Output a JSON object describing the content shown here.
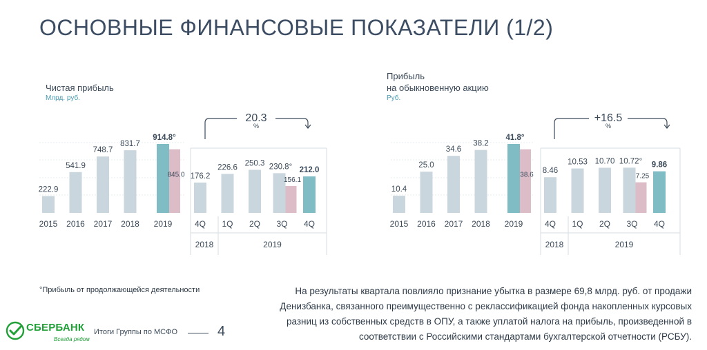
{
  "page": {
    "title": "ОСНОВНЫЕ  ФИНАНСОВЫЕ  ПОКАЗАТЕЛИ (1/2)",
    "footnote": "°Прибыль от продолжающейся деятельности",
    "comment": "На результаты квартала повлияло признание убытка в размере 69,8 млрд. руб. от продажи Денизбанка, связанного преимущественно с реклассификацией фонда накопленных курсовых разниц из собственных средств в ОПУ, а также уплатой налога на прибыль, произведенной в соответствии с Российскими стандартами бухгалтерской отчетности (РСБУ).",
    "footer_text": "Итоги Группы по МСФО",
    "page_number": "4",
    "logo_name": "СБЕРБАНК",
    "logo_slogan": "Всегда рядом"
  },
  "colors": {
    "bar_light": "#c9d6dd",
    "bar_teal": "#7fbcc4",
    "bar_pink": "#dcbcc7",
    "text": "#3b4a5a",
    "unit": "#4a9ab0",
    "brand": "#21a038"
  },
  "chart_data": [
    {
      "type": "bar",
      "title": "Чистая прибыль",
      "unit": "Млрд. руб.",
      "annual": {
        "categories": [
          "2015",
          "2016",
          "2017",
          "2018",
          "2019"
        ],
        "values": [
          222.9,
          541.9,
          748.7,
          831.7,
          914.8
        ],
        "labels": [
          "222.9",
          "541.9",
          "748.7",
          "831.7",
          "914.8°"
        ],
        "comparison": {
          "category": "2019",
          "value": 845.0,
          "label": "845.0"
        }
      },
      "quarterly": {
        "categories": [
          "4Q",
          "1Q",
          "2Q",
          "3Q",
          "4Q"
        ],
        "years": [
          "2018",
          "2019"
        ],
        "values": [
          176.2,
          226.6,
          250.3,
          230.8,
          212.0
        ],
        "labels": [
          "176.2",
          "226.6",
          "250.3",
          "230.8°",
          "212.0"
        ],
        "comparison": {
          "category": "3Q",
          "value": 156.1,
          "label": "156.1"
        }
      },
      "change": {
        "value": "20.3",
        "unit": "%"
      }
    },
    {
      "type": "bar",
      "title": "Прибыль\nна обыкновенную  акцию",
      "unit": "Руб.",
      "annual": {
        "categories": [
          "2015",
          "2016",
          "2017",
          "2018",
          "2019"
        ],
        "values": [
          10.4,
          25.0,
          34.6,
          38.2,
          41.8
        ],
        "labels": [
          "10.4",
          "25.0",
          "34.6",
          "38.2",
          "41.8°"
        ],
        "comparison": {
          "category": "2019",
          "value": 38.6,
          "label": "38.6"
        }
      },
      "quarterly": {
        "categories": [
          "4Q",
          "1Q",
          "2Q",
          "3Q",
          "4Q"
        ],
        "years": [
          "2018",
          "2019"
        ],
        "values": [
          8.46,
          10.53,
          10.7,
          10.72,
          9.86
        ],
        "labels": [
          "8.46",
          "10.53",
          "10.70",
          "10.72°",
          "9.86"
        ],
        "comparison": {
          "category": "3Q",
          "value": 7.25,
          "label": "7.25"
        }
      },
      "change": {
        "value": "+16.5",
        "unit": "%"
      }
    }
  ]
}
